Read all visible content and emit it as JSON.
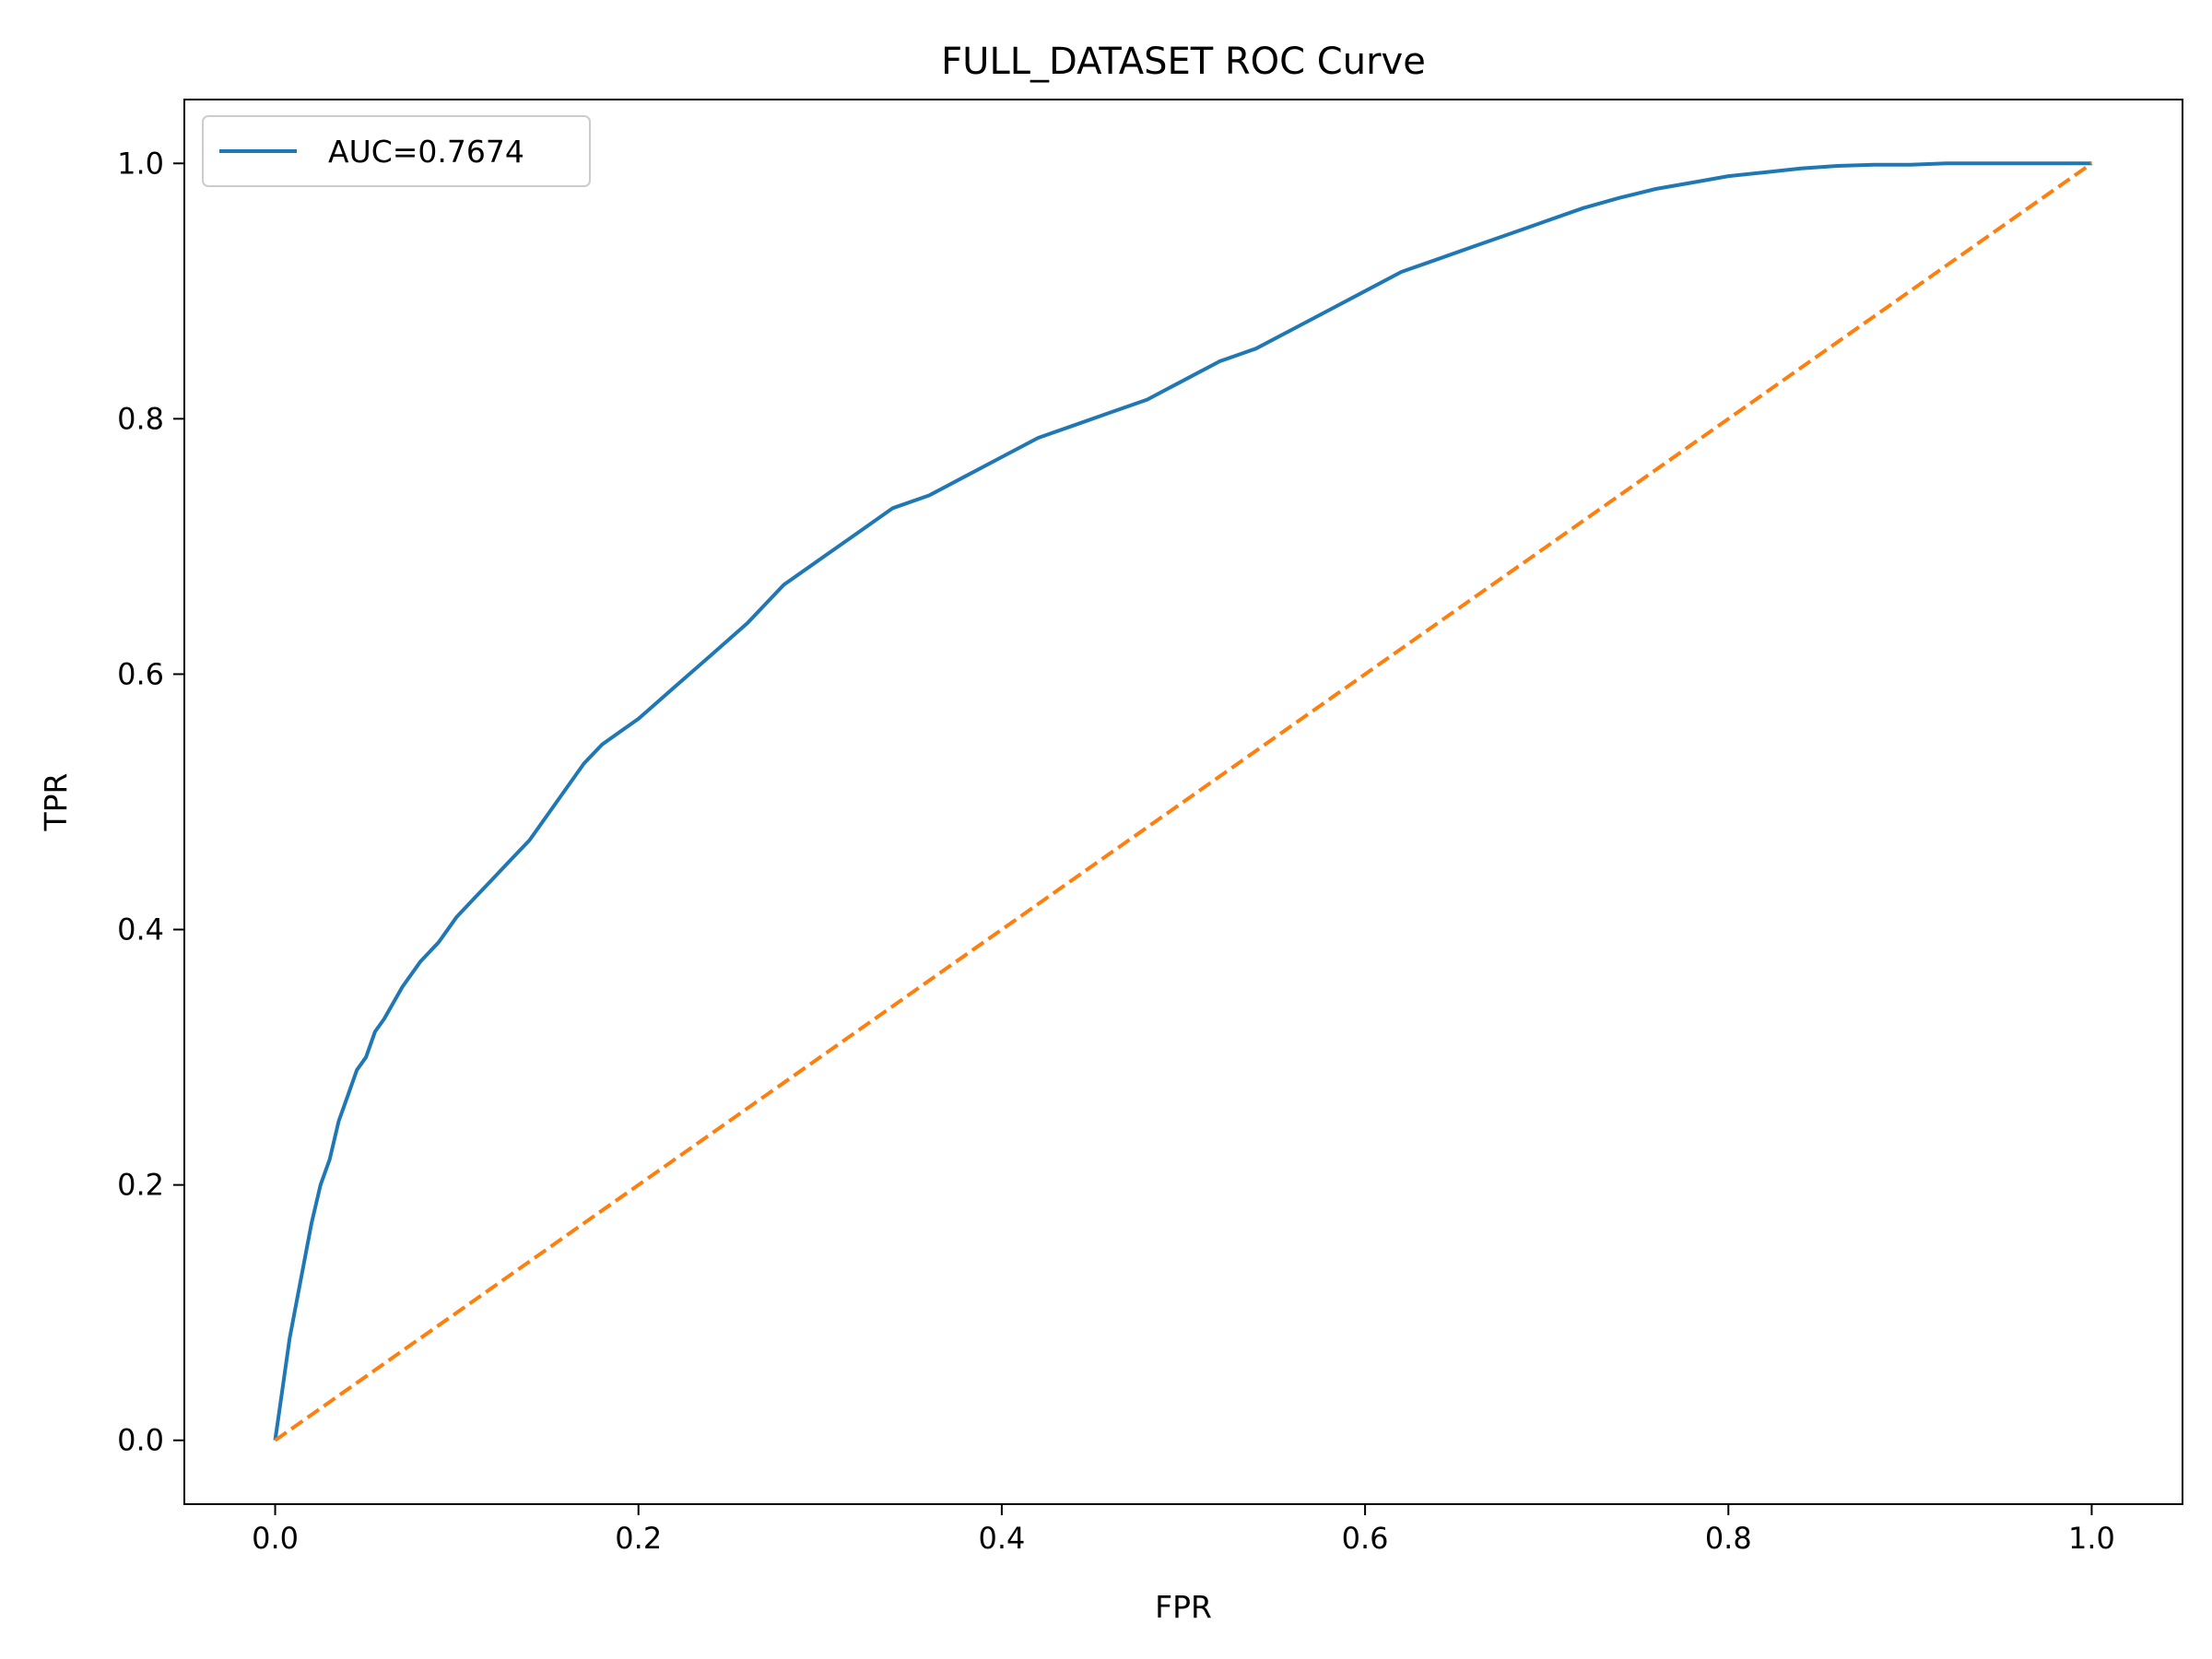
{
  "chart_data": {
    "type": "line",
    "title": "FULL_DATASET ROC Curve",
    "xlabel": "FPR",
    "ylabel": "TPR",
    "xlim": [
      -0.05,
      1.05
    ],
    "ylim": [
      -0.05,
      1.05
    ],
    "xticks": [
      "0.0",
      "0.2",
      "0.4",
      "0.6",
      "0.8",
      "1.0"
    ],
    "yticks": [
      "0.0",
      "0.2",
      "0.4",
      "0.6",
      "0.8",
      "1.0"
    ],
    "grid": false,
    "legend_position": "top-left",
    "series": [
      {
        "name": "AUC=0.7674",
        "color": "#1f77b4",
        "style": "solid",
        "x": [
          0.0,
          0.002,
          0.005,
          0.008,
          0.012,
          0.016,
          0.02,
          0.025,
          0.03,
          0.035,
          0.04,
          0.045,
          0.05,
          0.055,
          0.06,
          0.07,
          0.08,
          0.09,
          0.1,
          0.11,
          0.12,
          0.13,
          0.14,
          0.15,
          0.16,
          0.17,
          0.18,
          0.19,
          0.2,
          0.22,
          0.24,
          0.26,
          0.28,
          0.3,
          0.32,
          0.34,
          0.36,
          0.38,
          0.4,
          0.42,
          0.44,
          0.46,
          0.48,
          0.5,
          0.52,
          0.54,
          0.56,
          0.58,
          0.6,
          0.62,
          0.64,
          0.66,
          0.68,
          0.7,
          0.72,
          0.74,
          0.76,
          0.78,
          0.8,
          0.82,
          0.84,
          0.86,
          0.88,
          0.9,
          0.92,
          0.94,
          0.96,
          0.98,
          1.0
        ],
        "y": [
          0.0,
          0.02,
          0.05,
          0.08,
          0.11,
          0.14,
          0.17,
          0.2,
          0.22,
          0.25,
          0.27,
          0.29,
          0.3,
          0.32,
          0.33,
          0.355,
          0.375,
          0.39,
          0.41,
          0.425,
          0.44,
          0.455,
          0.47,
          0.49,
          0.51,
          0.53,
          0.545,
          0.555,
          0.565,
          0.59,
          0.615,
          0.64,
          0.67,
          0.69,
          0.71,
          0.73,
          0.74,
          0.755,
          0.77,
          0.785,
          0.795,
          0.805,
          0.815,
          0.83,
          0.845,
          0.855,
          0.87,
          0.885,
          0.9,
          0.915,
          0.925,
          0.935,
          0.945,
          0.955,
          0.965,
          0.973,
          0.98,
          0.985,
          0.99,
          0.993,
          0.996,
          0.998,
          0.999,
          0.999,
          1.0,
          1.0,
          1.0,
          1.0,
          1.0
        ]
      },
      {
        "name": "",
        "color": "#ff7f0e",
        "style": "dashed",
        "x": [
          0.0,
          1.0
        ],
        "y": [
          0.0,
          1.0
        ]
      }
    ]
  }
}
